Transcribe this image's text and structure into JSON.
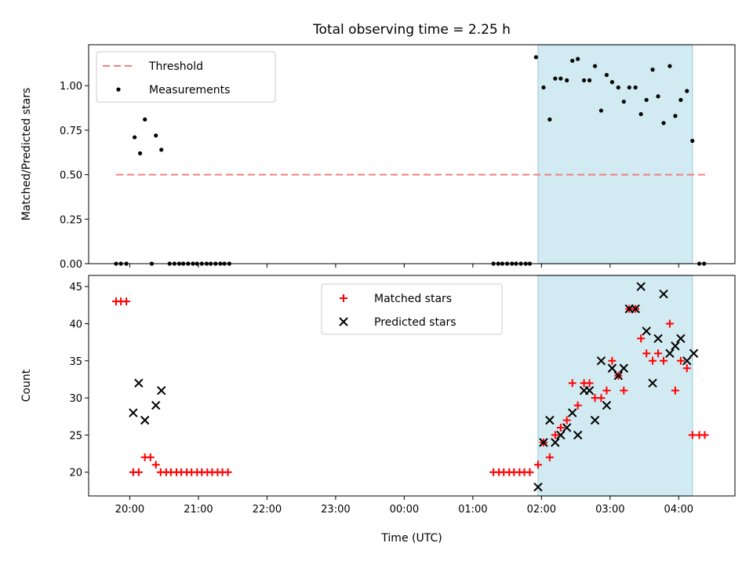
{
  "chart_data": {
    "title": "Total observing time = 2.25 h",
    "xlabel": "Time (UTC)",
    "x_tick_labels": [
      "20:00",
      "21:00",
      "22:00",
      "23:00",
      "00:00",
      "01:00",
      "02:00",
      "03:00",
      "04:00"
    ],
    "x_tick_hours": [
      20,
      21,
      22,
      23,
      24,
      25,
      26,
      27,
      28
    ],
    "xlim_hours": [
      19.4,
      28.82
    ],
    "colors": {
      "threshold": "#f08080",
      "measurements": "#000000",
      "matched": "#ff0000",
      "predicted": "#000000",
      "shaded": "#add8e6"
    },
    "shaded_interval_hours": [
      25.95,
      28.2
    ],
    "panels": [
      {
        "type": "scatter",
        "ylabel": "Matched/Predicted stars",
        "ylim": [
          0,
          1.23
        ],
        "y_ticks": [
          0.0,
          0.25,
          0.5,
          0.75,
          1.0
        ],
        "y_tick_labels": [
          "0.00",
          "0.25",
          "0.50",
          "0.75",
          "1.00"
        ],
        "legend_position": "top-left",
        "series": [
          {
            "name": "Threshold",
            "kind": "dashed-line",
            "points": [
              [
                19.8,
                0.5
              ],
              [
                28.4,
                0.5
              ]
            ]
          },
          {
            "name": "Measurements",
            "kind": "dot",
            "points": [
              [
                19.8,
                0
              ],
              [
                19.87,
                0
              ],
              [
                19.95,
                0
              ],
              [
                20.07,
                0.71
              ],
              [
                20.15,
                0.62
              ],
              [
                20.22,
                0.81
              ],
              [
                20.32,
                0
              ],
              [
                20.38,
                0.72
              ],
              [
                20.46,
                0.64
              ],
              [
                20.58,
                0
              ],
              [
                20.65,
                0
              ],
              [
                20.72,
                0
              ],
              [
                20.78,
                0
              ],
              [
                20.85,
                0
              ],
              [
                20.92,
                0
              ],
              [
                20.98,
                0
              ],
              [
                21.05,
                0
              ],
              [
                21.12,
                0
              ],
              [
                21.18,
                0
              ],
              [
                21.25,
                0
              ],
              [
                21.32,
                0
              ],
              [
                21.38,
                0
              ],
              [
                21.45,
                0
              ],
              [
                25.3,
                0
              ],
              [
                25.37,
                0
              ],
              [
                25.43,
                0
              ],
              [
                25.5,
                0
              ],
              [
                25.57,
                0
              ],
              [
                25.63,
                0
              ],
              [
                25.7,
                0
              ],
              [
                25.77,
                0
              ],
              [
                25.83,
                0
              ],
              [
                25.92,
                1.16
              ],
              [
                26.03,
                0.99
              ],
              [
                26.12,
                0.81
              ],
              [
                26.2,
                1.04
              ],
              [
                26.28,
                1.04
              ],
              [
                26.37,
                1.03
              ],
              [
                26.45,
                1.14
              ],
              [
                26.53,
                1.15
              ],
              [
                26.62,
                1.03
              ],
              [
                26.7,
                1.03
              ],
              [
                26.78,
                1.11
              ],
              [
                26.87,
                0.86
              ],
              [
                26.95,
                1.06
              ],
              [
                27.03,
                1.02
              ],
              [
                27.12,
                0.99
              ],
              [
                27.2,
                0.91
              ],
              [
                27.28,
                0.99
              ],
              [
                27.37,
                0.99
              ],
              [
                27.45,
                0.84
              ],
              [
                27.53,
                0.92
              ],
              [
                27.62,
                1.09
              ],
              [
                27.7,
                0.94
              ],
              [
                27.78,
                0.79
              ],
              [
                27.87,
                1.11
              ],
              [
                27.95,
                0.83
              ],
              [
                28.03,
                0.92
              ],
              [
                28.12,
                0.97
              ],
              [
                28.2,
                0.69
              ],
              [
                28.3,
                0
              ],
              [
                28.37,
                0
              ]
            ]
          }
        ]
      },
      {
        "type": "scatter",
        "ylabel": "Count",
        "ylim": [
          16.8,
          46.5
        ],
        "y_ticks": [
          20,
          25,
          30,
          35,
          40,
          45
        ],
        "y_tick_labels": [
          "20",
          "25",
          "30",
          "35",
          "40",
          "45"
        ],
        "legend_position": "top-center",
        "series": [
          {
            "name": "Matched stars",
            "kind": "plus",
            "points": [
              [
                19.8,
                43
              ],
              [
                19.87,
                43
              ],
              [
                19.95,
                43
              ],
              [
                20.05,
                20
              ],
              [
                20.13,
                20
              ],
              [
                20.22,
                22
              ],
              [
                20.3,
                22
              ],
              [
                20.38,
                21
              ],
              [
                20.45,
                20
              ],
              [
                20.53,
                20
              ],
              [
                20.6,
                20
              ],
              [
                20.68,
                20
              ],
              [
                20.75,
                20
              ],
              [
                20.83,
                20
              ],
              [
                20.9,
                20
              ],
              [
                20.98,
                20
              ],
              [
                21.05,
                20
              ],
              [
                21.13,
                20
              ],
              [
                21.2,
                20
              ],
              [
                21.28,
                20
              ],
              [
                21.35,
                20
              ],
              [
                21.43,
                20
              ],
              [
                25.3,
                20
              ],
              [
                25.38,
                20
              ],
              [
                25.45,
                20
              ],
              [
                25.53,
                20
              ],
              [
                25.6,
                20
              ],
              [
                25.68,
                20
              ],
              [
                25.75,
                20
              ],
              [
                25.83,
                20
              ],
              [
                25.95,
                21
              ],
              [
                26.03,
                24
              ],
              [
                26.12,
                22
              ],
              [
                26.2,
                25
              ],
              [
                26.28,
                26
              ],
              [
                26.37,
                27
              ],
              [
                26.45,
                32
              ],
              [
                26.53,
                29
              ],
              [
                26.62,
                32
              ],
              [
                26.7,
                32
              ],
              [
                26.78,
                30
              ],
              [
                26.87,
                30
              ],
              [
                26.95,
                31
              ],
              [
                27.03,
                35
              ],
              [
                27.12,
                33
              ],
              [
                27.2,
                31
              ],
              [
                27.28,
                42
              ],
              [
                27.37,
                42
              ],
              [
                27.45,
                38
              ],
              [
                27.53,
                36
              ],
              [
                27.62,
                35
              ],
              [
                27.7,
                36
              ],
              [
                27.78,
                35
              ],
              [
                27.87,
                40
              ],
              [
                27.95,
                31
              ],
              [
                28.03,
                35
              ],
              [
                28.12,
                34
              ],
              [
                28.2,
                25
              ],
              [
                28.3,
                25
              ],
              [
                28.38,
                25
              ]
            ]
          },
          {
            "name": "Predicted stars",
            "kind": "x",
            "points": [
              [
                20.05,
                28
              ],
              [
                20.13,
                32
              ],
              [
                20.22,
                27
              ],
              [
                20.38,
                29
              ],
              [
                20.46,
                31
              ],
              [
                25.95,
                18
              ],
              [
                26.03,
                24
              ],
              [
                26.12,
                27
              ],
              [
                26.2,
                24
              ],
              [
                26.28,
                25
              ],
              [
                26.37,
                26
              ],
              [
                26.45,
                28
              ],
              [
                26.53,
                25
              ],
              [
                26.62,
                31
              ],
              [
                26.7,
                31
              ],
              [
                26.78,
                27
              ],
              [
                26.87,
                35
              ],
              [
                26.95,
                29
              ],
              [
                27.03,
                34
              ],
              [
                27.12,
                33
              ],
              [
                27.2,
                34
              ],
              [
                27.28,
                42
              ],
              [
                27.37,
                42
              ],
              [
                27.45,
                45
              ],
              [
                27.53,
                39
              ],
              [
                27.62,
                32
              ],
              [
                27.7,
                38
              ],
              [
                27.78,
                44
              ],
              [
                27.87,
                36
              ],
              [
                27.95,
                37
              ],
              [
                28.03,
                38
              ],
              [
                28.12,
                35
              ],
              [
                28.22,
                36
              ]
            ]
          }
        ]
      }
    ]
  }
}
